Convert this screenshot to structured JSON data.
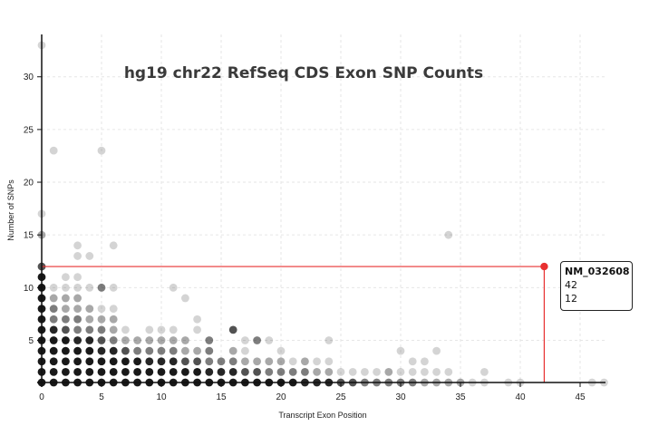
{
  "chart_data": {
    "type": "scatter",
    "title": "hg19 chr22 RefSeq CDS Exon SNP Counts",
    "xlabel": "Transcript Exon Position",
    "ylabel": "Number of SNPs",
    "xlim": [
      0,
      47
    ],
    "ylim": [
      1,
      33
    ],
    "xticks": [
      0,
      5,
      10,
      15,
      20,
      25,
      30,
      35,
      40,
      45
    ],
    "yticks": [
      5,
      10,
      15,
      20,
      25,
      30
    ],
    "grid": true,
    "point_color": "#000000",
    "highlight_color": "#e83030",
    "series": [
      {
        "points": [
          {
            "x": 0,
            "y": 1,
            "n": 9
          },
          {
            "x": 0,
            "y": 2,
            "n": 9
          },
          {
            "x": 0,
            "y": 3,
            "n": 9
          },
          {
            "x": 0,
            "y": 4,
            "n": 9
          },
          {
            "x": 0,
            "y": 5,
            "n": 9
          },
          {
            "x": 0,
            "y": 6,
            "n": 8
          },
          {
            "x": 0,
            "y": 7,
            "n": 8
          },
          {
            "x": 0,
            "y": 8,
            "n": 7
          },
          {
            "x": 0,
            "y": 9,
            "n": 7
          },
          {
            "x": 0,
            "y": 10,
            "n": 6
          },
          {
            "x": 0,
            "y": 11,
            "n": 6
          },
          {
            "x": 0,
            "y": 12,
            "n": 4
          },
          {
            "x": 0,
            "y": 15,
            "n": 2
          },
          {
            "x": 0,
            "y": 17,
            "n": 1
          },
          {
            "x": 0,
            "y": 33,
            "n": 1
          },
          {
            "x": 1,
            "y": 1,
            "n": 9
          },
          {
            "x": 1,
            "y": 2,
            "n": 9
          },
          {
            "x": 1,
            "y": 3,
            "n": 9
          },
          {
            "x": 1,
            "y": 4,
            "n": 8
          },
          {
            "x": 1,
            "y": 5,
            "n": 7
          },
          {
            "x": 1,
            "y": 6,
            "n": 5
          },
          {
            "x": 1,
            "y": 7,
            "n": 3
          },
          {
            "x": 1,
            "y": 8,
            "n": 3
          },
          {
            "x": 1,
            "y": 9,
            "n": 2
          },
          {
            "x": 1,
            "y": 10,
            "n": 1
          },
          {
            "x": 1,
            "y": 23,
            "n": 1
          },
          {
            "x": 2,
            "y": 1,
            "n": 9
          },
          {
            "x": 2,
            "y": 2,
            "n": 9
          },
          {
            "x": 2,
            "y": 3,
            "n": 9
          },
          {
            "x": 2,
            "y": 4,
            "n": 8
          },
          {
            "x": 2,
            "y": 5,
            "n": 6
          },
          {
            "x": 2,
            "y": 6,
            "n": 4
          },
          {
            "x": 2,
            "y": 7,
            "n": 3
          },
          {
            "x": 2,
            "y": 8,
            "n": 2
          },
          {
            "x": 2,
            "y": 9,
            "n": 2
          },
          {
            "x": 2,
            "y": 10,
            "n": 1
          },
          {
            "x": 2,
            "y": 11,
            "n": 1
          },
          {
            "x": 3,
            "y": 1,
            "n": 9
          },
          {
            "x": 3,
            "y": 2,
            "n": 9
          },
          {
            "x": 3,
            "y": 3,
            "n": 9
          },
          {
            "x": 3,
            "y": 4,
            "n": 8
          },
          {
            "x": 3,
            "y": 5,
            "n": 5
          },
          {
            "x": 3,
            "y": 6,
            "n": 3
          },
          {
            "x": 3,
            "y": 7,
            "n": 3
          },
          {
            "x": 3,
            "y": 8,
            "n": 2
          },
          {
            "x": 3,
            "y": 9,
            "n": 2
          },
          {
            "x": 3,
            "y": 10,
            "n": 1
          },
          {
            "x": 3,
            "y": 11,
            "n": 1
          },
          {
            "x": 3,
            "y": 13,
            "n": 1
          },
          {
            "x": 3,
            "y": 14,
            "n": 1
          },
          {
            "x": 4,
            "y": 1,
            "n": 9
          },
          {
            "x": 4,
            "y": 2,
            "n": 9
          },
          {
            "x": 4,
            "y": 3,
            "n": 8
          },
          {
            "x": 4,
            "y": 4,
            "n": 6
          },
          {
            "x": 4,
            "y": 5,
            "n": 5
          },
          {
            "x": 4,
            "y": 6,
            "n": 3
          },
          {
            "x": 4,
            "y": 7,
            "n": 2
          },
          {
            "x": 4,
            "y": 8,
            "n": 2
          },
          {
            "x": 4,
            "y": 10,
            "n": 1
          },
          {
            "x": 4,
            "y": 13,
            "n": 1
          },
          {
            "x": 5,
            "y": 1,
            "n": 9
          },
          {
            "x": 5,
            "y": 2,
            "n": 9
          },
          {
            "x": 5,
            "y": 3,
            "n": 8
          },
          {
            "x": 5,
            "y": 4,
            "n": 5
          },
          {
            "x": 5,
            "y": 5,
            "n": 4
          },
          {
            "x": 5,
            "y": 6,
            "n": 3
          },
          {
            "x": 5,
            "y": 7,
            "n": 2
          },
          {
            "x": 5,
            "y": 8,
            "n": 1
          },
          {
            "x": 5,
            "y": 10,
            "n": 3
          },
          {
            "x": 5,
            "y": 23,
            "n": 1
          },
          {
            "x": 6,
            "y": 1,
            "n": 9
          },
          {
            "x": 6,
            "y": 2,
            "n": 9
          },
          {
            "x": 6,
            "y": 3,
            "n": 7
          },
          {
            "x": 6,
            "y": 4,
            "n": 5
          },
          {
            "x": 6,
            "y": 5,
            "n": 3
          },
          {
            "x": 6,
            "y": 6,
            "n": 2
          },
          {
            "x": 6,
            "y": 7,
            "n": 2
          },
          {
            "x": 6,
            "y": 8,
            "n": 1
          },
          {
            "x": 6,
            "y": 10,
            "n": 1
          },
          {
            "x": 6,
            "y": 14,
            "n": 1
          },
          {
            "x": 7,
            "y": 1,
            "n": 9
          },
          {
            "x": 7,
            "y": 2,
            "n": 9
          },
          {
            "x": 7,
            "y": 3,
            "n": 7
          },
          {
            "x": 7,
            "y": 4,
            "n": 4
          },
          {
            "x": 7,
            "y": 5,
            "n": 2
          },
          {
            "x": 7,
            "y": 6,
            "n": 1
          },
          {
            "x": 8,
            "y": 1,
            "n": 9
          },
          {
            "x": 8,
            "y": 2,
            "n": 8
          },
          {
            "x": 8,
            "y": 3,
            "n": 6
          },
          {
            "x": 8,
            "y": 4,
            "n": 3
          },
          {
            "x": 8,
            "y": 5,
            "n": 2
          },
          {
            "x": 9,
            "y": 1,
            "n": 9
          },
          {
            "x": 9,
            "y": 2,
            "n": 8
          },
          {
            "x": 9,
            "y": 3,
            "n": 5
          },
          {
            "x": 9,
            "y": 4,
            "n": 3
          },
          {
            "x": 9,
            "y": 5,
            "n": 2
          },
          {
            "x": 9,
            "y": 6,
            "n": 1
          },
          {
            "x": 10,
            "y": 1,
            "n": 9
          },
          {
            "x": 10,
            "y": 2,
            "n": 7
          },
          {
            "x": 10,
            "y": 3,
            "n": 5
          },
          {
            "x": 10,
            "y": 4,
            "n": 3
          },
          {
            "x": 10,
            "y": 5,
            "n": 2
          },
          {
            "x": 10,
            "y": 6,
            "n": 1
          },
          {
            "x": 11,
            "y": 1,
            "n": 9
          },
          {
            "x": 11,
            "y": 2,
            "n": 7
          },
          {
            "x": 11,
            "y": 3,
            "n": 5
          },
          {
            "x": 11,
            "y": 4,
            "n": 3
          },
          {
            "x": 11,
            "y": 5,
            "n": 2
          },
          {
            "x": 11,
            "y": 6,
            "n": 1
          },
          {
            "x": 11,
            "y": 10,
            "n": 1
          },
          {
            "x": 12,
            "y": 1,
            "n": 8
          },
          {
            "x": 12,
            "y": 2,
            "n": 6
          },
          {
            "x": 12,
            "y": 3,
            "n": 4
          },
          {
            "x": 12,
            "y": 4,
            "n": 2
          },
          {
            "x": 12,
            "y": 5,
            "n": 2
          },
          {
            "x": 12,
            "y": 9,
            "n": 1
          },
          {
            "x": 13,
            "y": 1,
            "n": 8
          },
          {
            "x": 13,
            "y": 2,
            "n": 6
          },
          {
            "x": 13,
            "y": 3,
            "n": 4
          },
          {
            "x": 13,
            "y": 4,
            "n": 2
          },
          {
            "x": 13,
            "y": 6,
            "n": 1
          },
          {
            "x": 13,
            "y": 7,
            "n": 1
          },
          {
            "x": 14,
            "y": 1,
            "n": 8
          },
          {
            "x": 14,
            "y": 2,
            "n": 5
          },
          {
            "x": 14,
            "y": 3,
            "n": 3
          },
          {
            "x": 14,
            "y": 4,
            "n": 3
          },
          {
            "x": 14,
            "y": 5,
            "n": 3
          },
          {
            "x": 15,
            "y": 1,
            "n": 8
          },
          {
            "x": 15,
            "y": 2,
            "n": 5
          },
          {
            "x": 15,
            "y": 3,
            "n": 3
          },
          {
            "x": 16,
            "y": 1,
            "n": 7
          },
          {
            "x": 16,
            "y": 2,
            "n": 5
          },
          {
            "x": 16,
            "y": 3,
            "n": 3
          },
          {
            "x": 16,
            "y": 4,
            "n": 2
          },
          {
            "x": 16,
            "y": 6,
            "n": 4
          },
          {
            "x": 17,
            "y": 1,
            "n": 7
          },
          {
            "x": 17,
            "y": 2,
            "n": 4
          },
          {
            "x": 17,
            "y": 3,
            "n": 2
          },
          {
            "x": 17,
            "y": 4,
            "n": 1
          },
          {
            "x": 17,
            "y": 5,
            "n": 1
          },
          {
            "x": 18,
            "y": 1,
            "n": 7
          },
          {
            "x": 18,
            "y": 2,
            "n": 4
          },
          {
            "x": 18,
            "y": 3,
            "n": 2
          },
          {
            "x": 18,
            "y": 5,
            "n": 3
          },
          {
            "x": 19,
            "y": 1,
            "n": 6
          },
          {
            "x": 19,
            "y": 2,
            "n": 3
          },
          {
            "x": 19,
            "y": 3,
            "n": 2
          },
          {
            "x": 19,
            "y": 5,
            "n": 1
          },
          {
            "x": 20,
            "y": 1,
            "n": 6
          },
          {
            "x": 20,
            "y": 2,
            "n": 3
          },
          {
            "x": 20,
            "y": 3,
            "n": 2
          },
          {
            "x": 20,
            "y": 4,
            "n": 1
          },
          {
            "x": 21,
            "y": 1,
            "n": 6
          },
          {
            "x": 21,
            "y": 2,
            "n": 3
          },
          {
            "x": 21,
            "y": 3,
            "n": 1
          },
          {
            "x": 22,
            "y": 1,
            "n": 5
          },
          {
            "x": 22,
            "y": 2,
            "n": 3
          },
          {
            "x": 22,
            "y": 3,
            "n": 2
          },
          {
            "x": 23,
            "y": 1,
            "n": 5
          },
          {
            "x": 23,
            "y": 2,
            "n": 2
          },
          {
            "x": 23,
            "y": 3,
            "n": 1
          },
          {
            "x": 24,
            "y": 1,
            "n": 5
          },
          {
            "x": 24,
            "y": 2,
            "n": 2
          },
          {
            "x": 24,
            "y": 3,
            "n": 1
          },
          {
            "x": 24,
            "y": 5,
            "n": 1
          },
          {
            "x": 25,
            "y": 1,
            "n": 4
          },
          {
            "x": 25,
            "y": 2,
            "n": 1
          },
          {
            "x": 26,
            "y": 1,
            "n": 4
          },
          {
            "x": 26,
            "y": 2,
            "n": 1
          },
          {
            "x": 27,
            "y": 1,
            "n": 3
          },
          {
            "x": 27,
            "y": 2,
            "n": 1
          },
          {
            "x": 28,
            "y": 1,
            "n": 3
          },
          {
            "x": 28,
            "y": 2,
            "n": 1
          },
          {
            "x": 29,
            "y": 1,
            "n": 3
          },
          {
            "x": 29,
            "y": 2,
            "n": 2
          },
          {
            "x": 30,
            "y": 1,
            "n": 3
          },
          {
            "x": 30,
            "y": 2,
            "n": 1
          },
          {
            "x": 30,
            "y": 4,
            "n": 1
          },
          {
            "x": 31,
            "y": 1,
            "n": 3
          },
          {
            "x": 31,
            "y": 2,
            "n": 1
          },
          {
            "x": 31,
            "y": 3,
            "n": 1
          },
          {
            "x": 32,
            "y": 1,
            "n": 2
          },
          {
            "x": 32,
            "y": 2,
            "n": 1
          },
          {
            "x": 32,
            "y": 3,
            "n": 1
          },
          {
            "x": 33,
            "y": 1,
            "n": 2
          },
          {
            "x": 33,
            "y": 2,
            "n": 1
          },
          {
            "x": 33,
            "y": 4,
            "n": 1
          },
          {
            "x": 34,
            "y": 1,
            "n": 2
          },
          {
            "x": 34,
            "y": 2,
            "n": 1
          },
          {
            "x": 34,
            "y": 15,
            "n": 1
          },
          {
            "x": 35,
            "y": 1,
            "n": 2
          },
          {
            "x": 36,
            "y": 1,
            "n": 1
          },
          {
            "x": 37,
            "y": 1,
            "n": 1
          },
          {
            "x": 37,
            "y": 2,
            "n": 1
          },
          {
            "x": 39,
            "y": 1,
            "n": 1
          },
          {
            "x": 40,
            "y": 1,
            "n": 1
          },
          {
            "x": 46,
            "y": 1,
            "n": 1
          },
          {
            "x": 47,
            "y": 1,
            "n": 1
          }
        ]
      }
    ],
    "highlight": {
      "x": 42,
      "y": 12,
      "label": "NM_032608"
    }
  },
  "tooltip": {
    "id": "NM_032608",
    "x": "42",
    "y": "12"
  }
}
